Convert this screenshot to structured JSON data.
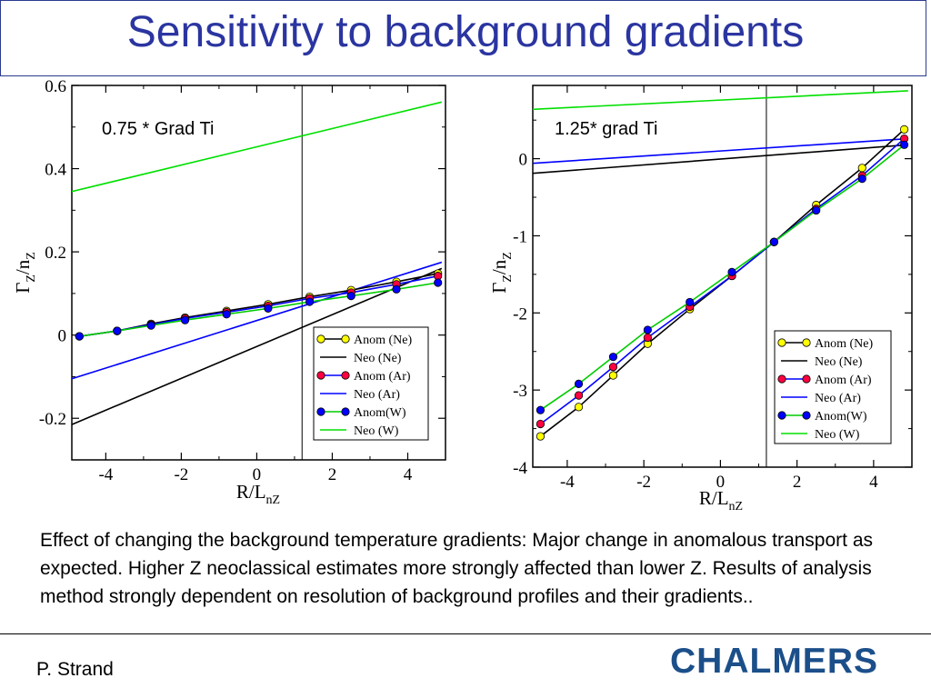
{
  "slide": {
    "title": "Sensitivity to background gradients",
    "caption": "Effect of changing the background temperature gradients: Major change in anomalous transport as expected. Higher Z neoclassical estimates more strongly affected than lower Z. Results of analysis method strongly dependent on resolution of background profiles and their gradients..",
    "author": "P. Strand",
    "logo_text": "CHALMERS"
  },
  "chart_data": [
    {
      "type": "line",
      "annotation": "0.75 * Grad Ti",
      "xlabel": "R/L",
      "xlabel_sub": "nZ",
      "ylabel": "Γ",
      "ylabel_sub1": "Z",
      "ylabel_mid": "/n",
      "ylabel_sub2": "Z",
      "xlim": [
        -4.9,
        5.0
      ],
      "ylim": [
        -0.3,
        0.6
      ],
      "xticks": [
        -4,
        -2,
        0,
        2,
        4
      ],
      "yticks": [
        -0.2,
        0,
        0.2,
        0.4,
        0.6
      ],
      "ytick_labels": [
        "-0.2",
        "0",
        "0.2",
        "0.4",
        "0.6"
      ],
      "vline_x": 1.2,
      "legend_placement": "bottom-right",
      "series": [
        {
          "name": "Anom (Ne)",
          "kind": "markers",
          "color": "#000000",
          "marker": "#ffff00",
          "x": [
            -4.7,
            -3.7,
            -2.8,
            -1.9,
            -0.8,
            0.3,
            1.4,
            2.5,
            3.7,
            4.8
          ],
          "y": [
            -0.003,
            0.01,
            0.027,
            0.042,
            0.058,
            0.074,
            0.092,
            0.108,
            0.128,
            0.148
          ]
        },
        {
          "name": "Neo (Ne)",
          "kind": "line",
          "color": "#000000",
          "x": [
            -4.9,
            4.9
          ],
          "y": [
            -0.215,
            0.16
          ]
        },
        {
          "name": "Anom (Ar)",
          "kind": "markers",
          "color": "#0000ff",
          "marker": "#ff0040",
          "x": [
            -4.7,
            -3.7,
            -2.8,
            -1.9,
            -0.8,
            0.3,
            1.4,
            2.5,
            3.7,
            4.8
          ],
          "y": [
            -0.003,
            0.01,
            0.025,
            0.04,
            0.055,
            0.07,
            0.088,
            0.102,
            0.122,
            0.142
          ]
        },
        {
          "name": "Neo (Ar)",
          "kind": "line",
          "color": "#0000ff",
          "x": [
            -4.9,
            4.9
          ],
          "y": [
            -0.105,
            0.175
          ]
        },
        {
          "name": "Anom(W)",
          "kind": "markers",
          "color": "#00cc00",
          "marker": "#0000ff",
          "x": [
            -4.7,
            -3.7,
            -2.8,
            -1.9,
            -0.8,
            0.3,
            1.4,
            2.5,
            3.7,
            4.8
          ],
          "y": [
            -0.003,
            0.01,
            0.023,
            0.036,
            0.05,
            0.064,
            0.08,
            0.094,
            0.11,
            0.126
          ]
        },
        {
          "name": "Neo (W)",
          "kind": "line",
          "color": "#00e000",
          "x": [
            -4.9,
            4.9
          ],
          "y": [
            0.345,
            0.56
          ]
        }
      ]
    },
    {
      "type": "line",
      "annotation": "1.25*  grad Ti",
      "xlabel": "R/L",
      "xlabel_sub": "nZ",
      "ylabel": "Γ",
      "ylabel_sub1": "Z",
      "ylabel_mid": "/n",
      "ylabel_sub2": "Z",
      "xlim": [
        -4.9,
        5.0
      ],
      "ylim": [
        -4.0,
        0.95
      ],
      "xticks": [
        -4,
        -2,
        0,
        2,
        4
      ],
      "yticks": [
        -4,
        -3,
        -2,
        -1,
        0
      ],
      "ytick_labels": [
        "-4",
        "-3",
        "-2",
        "-1",
        "0"
      ],
      "vline_x": 1.2,
      "legend_placement": "bottom-right",
      "series": [
        {
          "name": "Anom (Ne)",
          "kind": "markers",
          "color": "#000000",
          "marker": "#ffff00",
          "x": [
            -4.7,
            -3.7,
            -2.8,
            -1.9,
            -0.8,
            0.3,
            1.4,
            2.5,
            3.7,
            4.8
          ],
          "y": [
            -3.6,
            -3.22,
            -2.81,
            -2.4,
            -1.95,
            -1.52,
            -1.08,
            -0.6,
            -0.12,
            0.38
          ]
        },
        {
          "name": "Neo (Ne)",
          "kind": "line",
          "color": "#000000",
          "x": [
            -4.9,
            4.9
          ],
          "y": [
            -0.19,
            0.18
          ]
        },
        {
          "name": "Anom (Ar)",
          "kind": "markers",
          "color": "#0000ff",
          "marker": "#ff0040",
          "x": [
            -4.7,
            -3.7,
            -2.8,
            -1.9,
            -0.8,
            0.3,
            1.4,
            2.5,
            3.7,
            4.8
          ],
          "y": [
            -3.44,
            -3.07,
            -2.7,
            -2.32,
            -1.92,
            -1.52,
            -1.08,
            -0.65,
            -0.22,
            0.26
          ]
        },
        {
          "name": "Neo (Ar)",
          "kind": "line",
          "color": "#0000ff",
          "x": [
            -4.9,
            4.9
          ],
          "y": [
            -0.06,
            0.26
          ]
        },
        {
          "name": "Anom(W)",
          "kind": "markers",
          "color": "#00cc00",
          "marker": "#0000ff",
          "x": [
            -4.7,
            -3.7,
            -2.8,
            -1.9,
            -0.8,
            0.3,
            1.4,
            2.5,
            3.7,
            4.8
          ],
          "y": [
            -3.26,
            -2.92,
            -2.57,
            -2.22,
            -1.86,
            -1.47,
            -1.08,
            -0.67,
            -0.26,
            0.18
          ]
        },
        {
          "name": "Neo (W)",
          "kind": "line",
          "color": "#00e000",
          "x": [
            -4.9,
            4.9
          ],
          "y": [
            0.64,
            0.88
          ]
        }
      ]
    }
  ]
}
